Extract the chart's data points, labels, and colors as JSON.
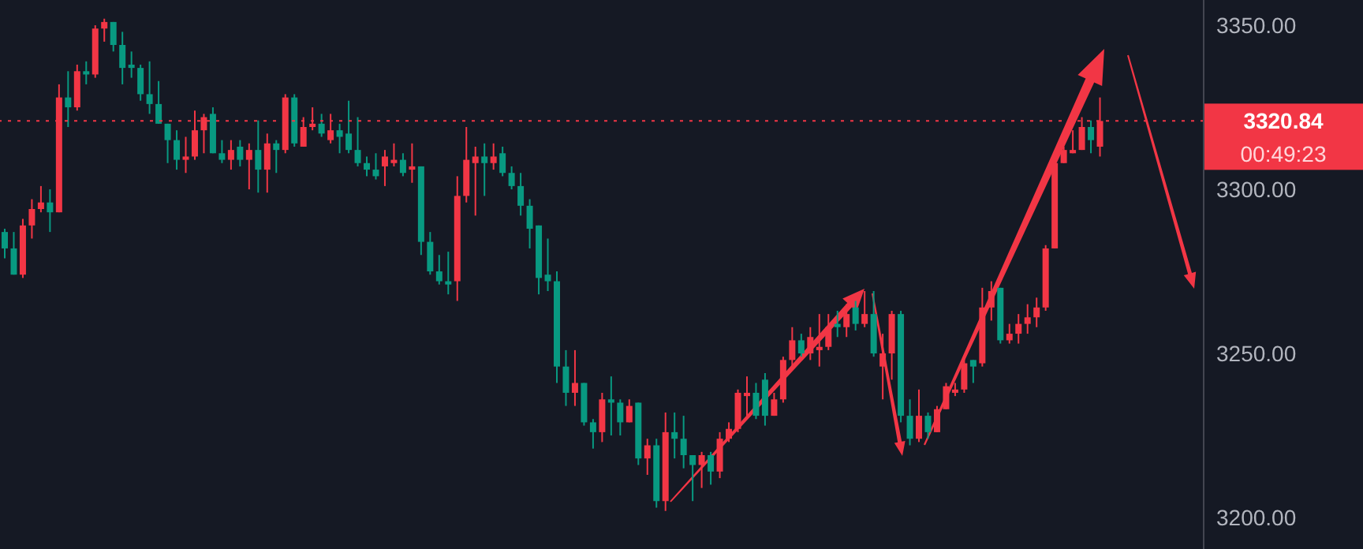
{
  "chart_data": {
    "type": "candlestick",
    "categories": [
      null,
      null,
      null,
      null,
      null,
      null,
      null,
      null,
      null,
      null,
      null,
      null,
      null,
      null,
      null,
      null,
      null,
      null,
      null,
      null,
      null,
      null,
      null,
      null,
      null,
      null,
      null,
      null,
      null,
      null,
      null,
      null,
      null,
      null,
      null,
      null,
      null,
      null,
      null,
      null,
      null,
      null,
      null,
      null,
      null,
      null,
      null,
      null,
      null,
      null,
      null,
      null,
      null,
      null,
      null,
      null,
      null,
      null,
      null,
      null,
      null,
      null,
      null,
      null,
      null,
      null,
      null,
      null,
      null,
      null,
      null,
      null,
      null,
      null,
      null,
      null,
      null,
      null,
      null,
      null,
      null,
      null,
      null,
      null,
      null,
      null,
      null,
      null,
      null,
      null,
      null,
      null,
      null,
      null,
      null,
      null,
      null,
      null,
      null,
      null,
      null,
      null,
      null,
      null,
      null,
      null,
      null,
      null,
      null,
      null,
      null,
      null,
      null,
      null,
      null,
      null,
      null,
      null,
      null,
      null,
      null,
      null
    ],
    "ohlc": [
      [
        3287,
        3288,
        3279,
        3282
      ],
      [
        3282,
        3287,
        3274,
        3274
      ],
      [
        3274,
        3291,
        3273,
        3289
      ],
      [
        3289,
        3297,
        3285,
        3294
      ],
      [
        3294,
        3301,
        3293,
        3296
      ],
      [
        3296,
        3300,
        3287,
        3293
      ],
      [
        3293,
        3332,
        3293,
        3328
      ],
      [
        3328,
        3336,
        3319,
        3325
      ],
      [
        3325,
        3338,
        3324,
        3336
      ],
      [
        3336,
        3339,
        3332,
        3335
      ],
      [
        3335,
        3350,
        3334,
        3349
      ],
      [
        3349,
        3352,
        3345,
        3351
      ],
      [
        3351,
        3351,
        3342,
        3344
      ],
      [
        3344,
        3348,
        3332,
        3337
      ],
      [
        3338,
        3342,
        3334,
        3337
      ],
      [
        3337,
        3338,
        3327,
        3329
      ],
      [
        3329,
        3339,
        3323,
        3326
      ],
      [
        3326,
        3333,
        3320,
        3320
      ],
      [
        3320,
        3320,
        3308,
        3315
      ],
      [
        3315,
        3318,
        3306,
        3309
      ],
      [
        3309,
        3316,
        3305,
        3310
      ],
      [
        3310,
        3324,
        3309,
        3318
      ],
      [
        3318,
        3323,
        3311,
        3322
      ],
      [
        3323,
        3325,
        3311,
        3311
      ],
      [
        3311,
        3315,
        3308,
        3309
      ],
      [
        3309,
        3315,
        3306,
        3312
      ],
      [
        3313,
        3315,
        3307,
        3309
      ],
      [
        3309,
        3314,
        3300,
        3312
      ],
      [
        3312,
        3321,
        3299,
        3306
      ],
      [
        3306,
        3317,
        3299,
        3314
      ],
      [
        3314,
        3315,
        3305,
        3312
      ],
      [
        3312,
        3329,
        3311,
        3328
      ],
      [
        3328,
        3329,
        3313,
        3314
      ],
      [
        3313,
        3322,
        3313,
        3319
      ],
      [
        3319,
        3325,
        3318,
        3320
      ],
      [
        3320,
        3323,
        3316,
        3317
      ],
      [
        3315,
        3323,
        3314,
        3318
      ],
      [
        3318,
        3320,
        3311,
        3316
      ],
      [
        3317,
        3327,
        3311,
        3312
      ],
      [
        3312,
        3322,
        3307,
        3308
      ],
      [
        3308,
        3310,
        3304,
        3306
      ],
      [
        3306,
        3311,
        3303,
        3304
      ],
      [
        3307,
        3312,
        3301,
        3310
      ],
      [
        3308,
        3314,
        3307,
        3309
      ],
      [
        3309,
        3311,
        3304,
        3305
      ],
      [
        3306,
        3314,
        3302,
        3307
      ],
      [
        3307,
        3307,
        3280,
        3284
      ],
      [
        3284,
        3287,
        3274,
        3275
      ],
      [
        3275,
        3280,
        3271,
        3272
      ],
      [
        3272,
        3281,
        3268,
        3271
      ],
      [
        3272,
        3304,
        3266,
        3298
      ],
      [
        3298,
        3319,
        3296,
        3309
      ],
      [
        3308,
        3313,
        3292,
        3310
      ],
      [
        3310,
        3314,
        3298,
        3308
      ],
      [
        3308,
        3314,
        3306,
        3310
      ],
      [
        3311,
        3313,
        3304,
        3305
      ],
      [
        3305,
        3307,
        3300,
        3301
      ],
      [
        3301,
        3305,
        3292,
        3295
      ],
      [
        3295,
        3297,
        3282,
        3288
      ],
      [
        3289,
        3289,
        3268,
        3273
      ],
      [
        3274,
        3285,
        3269,
        3272
      ],
      [
        3272,
        3275,
        3241,
        3246
      ],
      [
        3246,
        3251,
        3234,
        3238
      ],
      [
        3238,
        3251,
        3234,
        3241
      ],
      [
        3241,
        3241,
        3228,
        3229
      ],
      [
        3229,
        3230,
        3221,
        3226
      ],
      [
        3226,
        3238,
        3223,
        3236
      ],
      [
        3236,
        3243,
        3225,
        3235
      ],
      [
        3235,
        3236,
        3225,
        3229
      ],
      [
        3229,
        3236,
        3229,
        3234
      ],
      [
        3235,
        3235,
        3216,
        3218
      ],
      [
        3218,
        3224,
        3213,
        3222
      ],
      [
        3222,
        3224,
        3203,
        3205
      ],
      [
        3205,
        3232,
        3202,
        3226
      ],
      [
        3226,
        3232,
        3218,
        3224
      ],
      [
        3224,
        3231,
        3215,
        3219
      ],
      [
        3219,
        3219,
        3205,
        3216
      ],
      [
        3216,
        3220,
        3209,
        3219
      ],
      [
        3219,
        3220,
        3210,
        3214
      ],
      [
        3214,
        3226,
        3212,
        3224
      ],
      [
        3224,
        3229,
        3223,
        3227
      ],
      [
        3227,
        3239,
        3226,
        3238
      ],
      [
        3237,
        3243,
        3231,
        3238
      ],
      [
        3238,
        3241,
        3230,
        3231
      ],
      [
        3242,
        3244,
        3228,
        3231
      ],
      [
        3231,
        3238,
        3231,
        3236
      ],
      [
        3236,
        3249,
        3235,
        3248
      ],
      [
        3248,
        3258,
        3246,
        3254
      ],
      [
        3254,
        3256,
        3249,
        3250
      ],
      [
        3250,
        3258,
        3248,
        3255
      ],
      [
        3251,
        3262,
        3246,
        3252
      ],
      [
        3252,
        3262,
        3251,
        3258
      ],
      [
        3259,
        3263,
        3255,
        3258
      ],
      [
        3258,
        3265,
        3255,
        3262
      ],
      [
        3264,
        3266,
        3257,
        3259
      ],
      [
        3259,
        3269,
        3258,
        3262
      ],
      [
        3262,
        3269,
        3249,
        3250
      ],
      [
        3246,
        3256,
        3236,
        3250
      ],
      [
        3250,
        3263,
        3242,
        3262
      ],
      [
        3262,
        3263,
        3229,
        3231
      ],
      [
        3231,
        3236,
        3222,
        3224
      ],
      [
        3224,
        3239,
        3223,
        3231
      ],
      [
        3231,
        3232,
        3224,
        3226
      ],
      [
        3226,
        3234,
        3226,
        3233
      ],
      [
        3233,
        3241,
        3233,
        3240
      ],
      [
        3238,
        3241,
        3237,
        3239
      ],
      [
        3239,
        3249,
        3238,
        3247
      ],
      [
        3248,
        3248,
        3241,
        3246
      ],
      [
        3247,
        3270,
        3246,
        3264
      ],
      [
        3264,
        3272,
        3260,
        3269
      ],
      [
        3270,
        3270,
        3253,
        3254
      ],
      [
        3254,
        3259,
        3253,
        3256
      ],
      [
        3256,
        3262,
        3253,
        3259
      ],
      [
        3259,
        3265,
        3256,
        3261
      ],
      [
        3261,
        3267,
        3258,
        3264
      ],
      [
        3264,
        3283,
        3263,
        3282
      ],
      [
        3282,
        3309,
        3282,
        3308
      ],
      [
        3308,
        3313,
        3308,
        3312
      ],
      [
        3311,
        3318,
        3311,
        3312
      ],
      [
        3312,
        3322,
        3312,
        3319
      ],
      [
        3319,
        3321,
        3311,
        3315
      ],
      [
        3313,
        3328,
        3310,
        3320.84
      ]
    ],
    "colors": [
      "#089981",
      "#089981",
      "#f23645",
      "#f23645",
      "#f23645",
      "#089981",
      "#f23645",
      "#089981",
      "#f23645",
      "#089981",
      "#f23645",
      "#f23645",
      "#089981",
      "#089981",
      "#089981",
      "#089981",
      "#089981",
      "#089981",
      "#089981",
      "#089981",
      "#f23645",
      "#f23645",
      "#f23645",
      "#089981",
      "#089981",
      "#f23645",
      "#089981",
      "#f23645",
      "#089981",
      "#f23645",
      "#089981",
      "#f23645",
      "#089981",
      "#f23645",
      "#f23645",
      "#089981",
      "#f23645",
      "#089981",
      "#089981",
      "#089981",
      "#089981",
      "#089981",
      "#f23645",
      "#f23645",
      "#089981",
      "#f23645",
      "#089981",
      "#089981",
      "#089981",
      "#089981",
      "#f23645",
      "#f23645",
      "#f23645",
      "#089981",
      "#f23645",
      "#089981",
      "#089981",
      "#089981",
      "#089981",
      "#089981",
      "#089981",
      "#089981",
      "#089981",
      "#f23645",
      "#089981",
      "#089981",
      "#f23645",
      "#089981",
      "#089981",
      "#f23645",
      "#089981",
      "#f23645",
      "#089981",
      "#f23645",
      "#089981",
      "#089981",
      "#089981",
      "#f23645",
      "#089981",
      "#f23645",
      "#f23645",
      "#f23645",
      "#f23645",
      "#089981",
      "#089981",
      "#f23645",
      "#f23645",
      "#f23645",
      "#089981",
      "#f23645",
      "#f23645",
      "#f23645",
      "#089981",
      "#f23645",
      "#089981",
      "#f23645",
      "#089981",
      "#f23645",
      "#f23645",
      "#089981",
      "#089981",
      "#f23645",
      "#089981",
      "#f23645",
      "#f23645",
      "#f23645",
      "#f23645",
      "#089981",
      "#f23645",
      "#f23645",
      "#089981",
      "#f23645",
      "#f23645",
      "#f23645",
      "#f23645",
      "#f23645",
      "#f23645",
      "#f23645",
      "#f23645",
      "#f23645",
      "#089981",
      "#f23645"
    ],
    "ylim": [
      3190.4,
      3357.7
    ],
    "yticks": [
      {
        "value": 3200,
        "label": "3200.00"
      },
      {
        "value": 3250,
        "label": "3250.00"
      },
      {
        "value": 3300,
        "label": "3300.00"
      },
      {
        "value": 3350,
        "label": "3350.00"
      }
    ],
    "tick_labels": "y",
    "ref_lines": [
      {
        "axis": "y",
        "value": 3320.84,
        "label": "3320.84",
        "color": "#f23645",
        "line_style": "dotted"
      }
    ],
    "annotations": [
      "00:49:23"
    ]
  }
}
